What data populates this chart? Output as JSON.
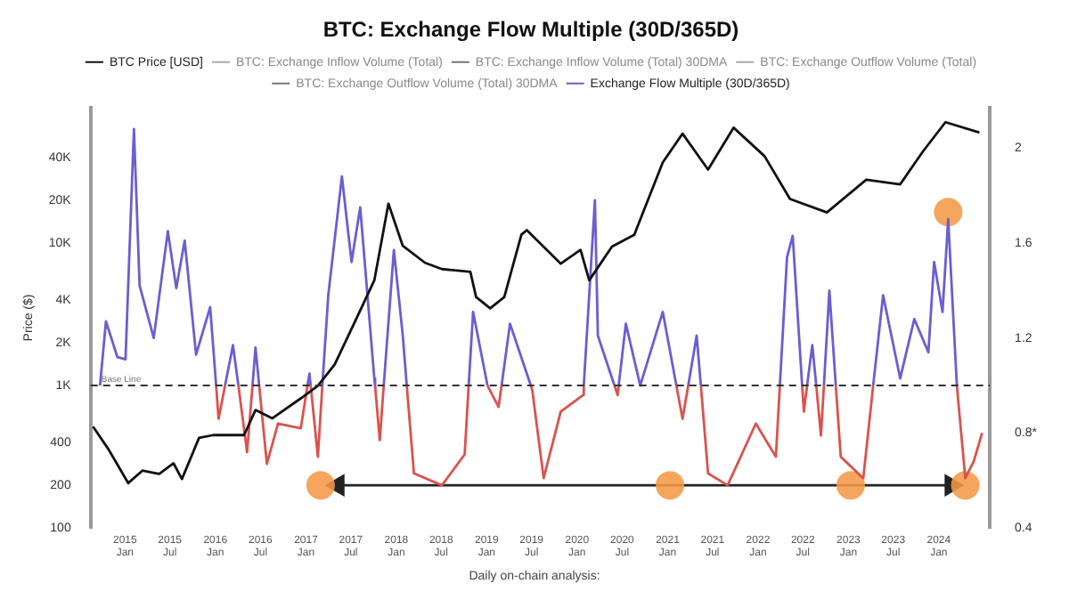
{
  "chart_data": {
    "type": "line",
    "title": "BTC: Exchange Flow Multiple (30D/365D)",
    "ylabel": "Price ($)",
    "xlim": [
      "2014-08-15",
      "2024-07-25"
    ],
    "xticks": [
      {
        "value": "2015-01-01",
        "label": "2015 Jan"
      },
      {
        "value": "2015-07-01",
        "label": "2015 Jul"
      },
      {
        "value": "2016-01-01",
        "label": "2016 Jan"
      },
      {
        "value": "2016-07-01",
        "label": "2016 Jul"
      },
      {
        "value": "2017-01-01",
        "label": "2017 Jan"
      },
      {
        "value": "2017-07-01",
        "label": "2017 Jul"
      },
      {
        "value": "2018-01-01",
        "label": "2018 Jan"
      },
      {
        "value": "2018-07-01",
        "label": "2018 Jul"
      },
      {
        "value": "2019-01-01",
        "label": "2019 Jan"
      },
      {
        "value": "2019-07-01",
        "label": "2019 Jul"
      },
      {
        "value": "2020-01-01",
        "label": "2020 Jan"
      },
      {
        "value": "2020-07-01",
        "label": "2020 Jul"
      },
      {
        "value": "2021-01-01",
        "label": "2021 Jan"
      },
      {
        "value": "2021-07-01",
        "label": "2021 Jul"
      },
      {
        "value": "2022-01-01",
        "label": "2022 Jan"
      },
      {
        "value": "2022-07-01",
        "label": "2022 Jul"
      },
      {
        "value": "2023-01-01",
        "label": "2023 Jan"
      },
      {
        "value": "2023-07-01",
        "label": "2023 Jul"
      },
      {
        "value": "2024-01-01",
        "label": "2024 Jan"
      }
    ],
    "log": "y",
    "ylim": [
      100,
      90000
    ],
    "yticks": [
      100,
      200,
      400,
      {
        "value": 1000,
        "label": "1K"
      },
      {
        "value": 2000,
        "label": "2K"
      },
      {
        "value": 4000,
        "label": "4K"
      },
      {
        "value": 10000,
        "label": "10K"
      },
      {
        "value": 20000,
        "label": "20K"
      },
      {
        "value": 40000,
        "label": "40K"
      }
    ],
    "y2lim": [
      0.4,
      2.17
    ],
    "y2ticks": [
      0.4,
      {
        "value": 0.8,
        "label": "0.8*"
      },
      1.2,
      1.6,
      2
    ],
    "grid": false,
    "legend": "top",
    "ref_lines": [
      {
        "axis": "y2",
        "value": 1,
        "label": "Base Line",
        "color": "#333333",
        "line_style": "dashed"
      }
    ],
    "annotations": [
      "Daily on-chain analysis:"
    ],
    "series": [
      {
        "name": "BTC Price [USD]",
        "color": "#111111",
        "x": [
          "2014-08-25",
          "2014-10-26",
          "2015-01-14",
          "2015-03-12",
          "2015-05-19",
          "2015-07-16",
          "2015-08-19",
          "2015-10-27",
          "2015-12-23",
          "2016-04-26",
          "2016-06-11",
          "2016-08-18",
          "2016-12-11",
          "2017-02-18",
          "2017-04-27",
          "2017-07-27",
          "2017-10-04",
          "2017-11-30",
          "2018-01-27",
          "2018-04-27",
          "2018-07-04",
          "2018-10-27",
          "2018-11-19",
          "2019-01-15",
          "2019-03-13",
          "2019-05-21",
          "2019-06-12",
          "2019-10-27",
          "2020-01-15",
          "2020-02-19",
          "2020-05-21",
          "2020-08-19",
          "2020-12-12",
          "2021-03-02",
          "2021-06-13",
          "2021-09-24",
          "2022-01-27",
          "2022-05-10",
          "2022-10-06",
          "2023-03-14",
          "2023-07-29",
          "2023-10-28",
          "2024-01-28",
          "2024-06-13"
        ],
        "values": [
          516,
          358,
          207,
          253,
          240,
          285,
          221,
          430,
          450,
          450,
          675,
          590,
          815,
          1000,
          1410,
          3050,
          5500,
          19000,
          9600,
          7300,
          6600,
          6300,
          4200,
          3500,
          4200,
          11500,
          12400,
          7200,
          9000,
          5500,
          9500,
          11500,
          37000,
          59000,
          33000,
          65000,
          41000,
          20500,
          16500,
          28000,
          26000,
          44000,
          71000,
          60000
        ]
      },
      {
        "name": "BTC: Exchange Inflow Volume (Total)",
        "color": "#aaaaaa"
      },
      {
        "name": "BTC: Exchange Inflow Volume (Total) 30DMA",
        "color": "#777777",
        "marker": "circle"
      },
      {
        "name": "BTC: Exchange Outflow Volume (Total)",
        "color": "#aaaaaa"
      },
      {
        "name": "BTC: Exchange Outflow Volume (Total) 30DMA",
        "color": "#777777",
        "marker": "circle"
      },
      {
        "name": "Exchange Flow Multiple (30D/365D)",
        "color": "#6a5fd0",
        "axis": "y2",
        "x": [
          "2014-09-22",
          "2014-10-16",
          "2014-12-01",
          "2015-01-03",
          "2015-02-06",
          "2015-03-01",
          "2015-04-27",
          "2015-06-23",
          "2015-07-27",
          "2015-08-30",
          "2015-10-15",
          "2015-12-11",
          "2016-01-04",
          "2016-01-20",
          "2016-02-09",
          "2016-03-12",
          "2016-04-03",
          "2016-04-20",
          "2016-05-30",
          "2016-06-11",
          "2016-06-26",
          "2016-09-10",
          "2017-01-07",
          "2017-01-15",
          "2017-01-20",
          "2017-02-18",
          "2017-03-08",
          "2017-04-01",
          "2017-05-26",
          "2017-07-04",
          "2017-08-08",
          "2017-10-04",
          "2017-10-07",
          "2017-10-26",
          "2017-11-11",
          "2017-12-22",
          "2018-01-27",
          "2018-02-12",
          "2018-07-04",
          "2018-10-20",
          "2018-11-07",
          "2019-01-04",
          "2019-02-18",
          "2019-03-02",
          "2019-04-05",
          "2019-06-12",
          "2019-06-28",
          "2019-10-27",
          "2020-01-28",
          "2020-03-13",
          "2020-03-25",
          "2020-05-31",
          "2020-06-13",
          "2020-06-17",
          "2020-07-16",
          "2020-09-12",
          "2020-12-12",
          "2021-02-05",
          "2021-03-02",
          "2021-03-25",
          "2021-04-28",
          "2021-05-15",
          "2021-10-01",
          "2022-03-30",
          "2022-04-28",
          "2022-05-21",
          "2022-06-28",
          "2022-07-05",
          "2022-07-18",
          "2022-08-08",
          "2022-08-24",
          "2022-09-12",
          "2022-09-24",
          "2022-10-16",
          "2022-11-11",
          "2023-01-01",
          "2023-04-11",
          "2023-05-21",
          "2023-07-29",
          "2023-09-24",
          "2023-11-20",
          "2023-12-13",
          "2024-01-16",
          "2024-02-08",
          "2024-03-14"
        ],
        "values": [
          1.0,
          1.27,
          1.12,
          1.11,
          2.08,
          1.42,
          1.2,
          1.65,
          1.41,
          1.61,
          1.13,
          1.33,
          1,
          null,
          1,
          1.17,
          1,
          null,
          1,
          1.16,
          1,
          null,
          1,
          1.05,
          1,
          null,
          1,
          1.38,
          1.88,
          1.52,
          1.75,
          1.03,
          1,
          null,
          1,
          1.57,
          1.21,
          1,
          null,
          1,
          1.31,
          1.0,
          null,
          1,
          1.26,
          1.05,
          1,
          null,
          1,
          1.78,
          1.21,
          1,
          null,
          1,
          1.26,
          1.0,
          1.31,
          1,
          null,
          1,
          1.21,
          1,
          null,
          1,
          1.54,
          1.63,
          1,
          null,
          1,
          1.17,
          1,
          null,
          1,
          1.4,
          1,
          null,
          1,
          1.38,
          1.03,
          1.28,
          1.14,
          1.52,
          1.31,
          1.7,
          1.0
        ]
      },
      {
        "color": "#d9534f",
        "axis": "y2",
        "x": [
          "2016-01-04",
          "2016-01-14",
          "2016-02-09",
          "2016-02-20",
          "2016-04-03",
          "2016-05-08",
          "2016-05-30",
          "2016-06-11",
          "2016-06-26",
          "2016-07-27",
          "2016-09-10",
          "2016-12-11",
          "2017-01-07",
          "2017-01-15",
          "2017-01-20",
          "2017-02-18",
          "2017-03-08",
          "2017-05-26",
          "2017-10-07",
          "2017-10-26",
          "2017-11-11",
          "2017-12-22",
          "2018-02-12",
          "2018-03-13",
          "2018-07-04",
          "2018-10-04",
          "2018-10-20",
          "2018-11-07",
          "2019-01-04",
          "2019-02-18",
          "2019-03-02",
          "2019-04-05",
          "2019-06-28",
          "2019-07-04",
          "2019-08-19",
          "2019-10-27",
          "2020-01-26",
          "2020-01-28",
          "2020-03-13",
          "2020-05-31",
          "2020-06-13",
          "2020-06-17",
          "2020-07-16",
          "2021-02-05",
          "2021-03-02",
          "2021-03-25",
          "2021-04-28",
          "2021-05-15",
          "2021-06-13",
          "2021-08-31",
          "2021-12-23",
          "2022-03-14",
          "2022-03-30",
          "2022-04-28",
          "2022-06-28",
          "2022-07-05",
          "2022-07-18",
          "2022-08-08",
          "2022-08-24",
          "2022-09-12",
          "2022-09-24",
          "2022-10-16",
          "2022-11-11",
          "2022-12-01",
          "2023-03-02",
          "2023-04-11",
          "2023-07-29",
          "2024-03-14",
          "2024-04-17",
          "2024-05-21",
          "2024-06-24"
        ],
        "values": [
          1,
          0.86,
          1,
          null,
          1,
          0.72,
          1,
          null,
          1,
          0.67,
          0.84,
          0.82,
          1,
          null,
          1,
          0.7,
          1,
          null,
          1,
          0.77,
          1,
          null,
          1,
          0.63,
          0.58,
          0.71,
          1,
          null,
          1.0,
          0.91,
          1,
          null,
          1,
          0.98,
          0.61,
          0.89,
          0.96,
          1,
          null,
          1,
          0.96,
          1,
          null,
          1,
          0.86,
          1,
          null,
          1,
          0.63,
          0.58,
          0.84,
          0.7,
          1,
          null,
          1,
          0.89,
          1,
          null,
          1,
          0.79,
          1,
          null,
          1,
          0.7,
          0.61,
          1,
          null,
          1.0,
          0.61,
          0.68,
          0.8
        ]
      },
      {
        "type": "scatter",
        "color": "#f59a45",
        "axis": "y2",
        "x": [
          "2017-03-01",
          "2021-01-10",
          "2023-01-10",
          "2024-04-17",
          "2024-02-08"
        ],
        "values": [
          0.58,
          0.58,
          0.58,
          0.58,
          1.73
        ]
      },
      {
        "type": "line",
        "color": "#222222",
        "axis": "y2",
        "marker": "triangle",
        "x": [
          "2017-05-10",
          "2024-02-20"
        ],
        "values": [
          0.58,
          0.58
        ]
      }
    ]
  }
}
